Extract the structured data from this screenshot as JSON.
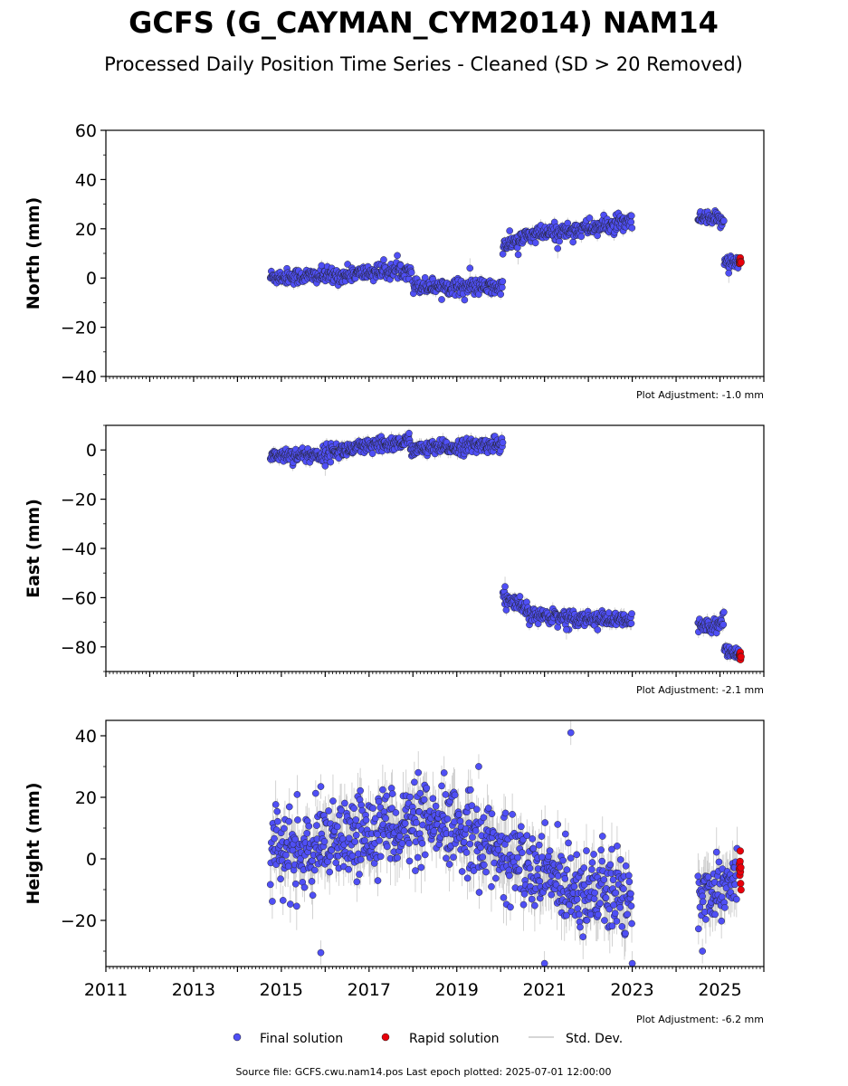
{
  "title": "GCFS (G_CAYMAN_CYM2014) NAM14",
  "subtitle": "Processed Daily Position Time Series - Cleaned (SD > 20 Removed)",
  "footer": "Source file: GCFS.cwu.nam14.pos  Last epoch plotted: 2025-07-01 12:00:00",
  "legend": {
    "final": "Final solution",
    "rapid": "Rapid solution",
    "std": "Std. Dev.",
    "placement": "bottom-center"
  },
  "colors": {
    "final": "#4f4ff5",
    "rapid": "#e8000b",
    "std": "#c8c8c8",
    "edge": "#202020"
  },
  "chart_data": [
    {
      "type": "scatter",
      "ylabel": "North (mm)",
      "ylim": [
        -40,
        60
      ],
      "yticks": [
        60,
        40,
        20,
        0,
        -20,
        -40
      ],
      "xlim": [
        2011,
        2026
      ],
      "grid": false,
      "adjustment": "Plot Adjustment: -1.0 mm",
      "segments": [
        {
          "start": 2014.75,
          "end": 2016.5,
          "y0": 0.5,
          "y1": 1.0,
          "noise": 1.6,
          "err": 1.5
        },
        {
          "start": 2016.5,
          "end": 2017.97,
          "y0": 1.5,
          "y1": 3.5,
          "noise": 1.6,
          "err": 1.5
        },
        {
          "start": 2018.0,
          "end": 2020.05,
          "y0": -3.0,
          "y1": -4.0,
          "noise": 1.6,
          "err": 1.6
        },
        {
          "start": 2020.05,
          "end": 2020.55,
          "y0": 13.0,
          "y1": 16.0,
          "noise": 1.6,
          "err": 1.6
        },
        {
          "start": 2020.55,
          "end": 2023.0,
          "y0": 17.0,
          "y1": 22.5,
          "noise": 1.7,
          "err": 1.7
        },
        {
          "start": 2024.5,
          "end": 2025.1,
          "y0": 24.0,
          "y1": 23.5,
          "noise": 1.5,
          "err": 1.6
        },
        {
          "start": 2025.1,
          "end": 2025.45,
          "y0": 7.5,
          "y1": 5.5,
          "noise": 1.5,
          "err": 1.6
        }
      ],
      "rapid": {
        "start": 2025.4,
        "end": 2025.5,
        "y": 6.5,
        "noise": 1.0,
        "count": 8
      },
      "outliers": [
        [
          2019.3,
          4.0
        ],
        [
          2020.4,
          9.5
        ],
        [
          2021.3,
          12.0
        ],
        [
          2025.2,
          2.0
        ]
      ]
    },
    {
      "type": "scatter",
      "ylabel": "East (mm)",
      "ylim": [
        -90,
        10
      ],
      "yticks": [
        0,
        -20,
        -40,
        -60,
        -80
      ],
      "xlim": [
        2011,
        2026
      ],
      "grid": false,
      "adjustment": "Plot Adjustment: -2.1 mm",
      "segments": [
        {
          "start": 2014.75,
          "end": 2016.0,
          "y0": -2.0,
          "y1": -2.0,
          "noise": 1.5,
          "err": 1.6
        },
        {
          "start": 2016.0,
          "end": 2017.97,
          "y0": -1.0,
          "y1": 3.5,
          "noise": 1.6,
          "err": 1.8
        },
        {
          "start": 2017.97,
          "end": 2020.05,
          "y0": 0.0,
          "y1": 2.5,
          "noise": 1.5,
          "err": 1.8
        },
        {
          "start": 2020.05,
          "end": 2020.6,
          "y0": -60.0,
          "y1": -65.0,
          "noise": 1.8,
          "err": 1.8
        },
        {
          "start": 2020.6,
          "end": 2023.0,
          "y0": -67.0,
          "y1": -69.5,
          "noise": 1.5,
          "err": 1.8
        },
        {
          "start": 2024.5,
          "end": 2025.1,
          "y0": -72.0,
          "y1": -70.0,
          "noise": 1.6,
          "err": 1.8
        },
        {
          "start": 2025.1,
          "end": 2025.45,
          "y0": -80.5,
          "y1": -83.0,
          "noise": 1.2,
          "err": 1.6
        }
      ],
      "rapid": {
        "start": 2025.4,
        "end": 2025.5,
        "y": -83.5,
        "noise": 0.8,
        "count": 8
      },
      "outliers": [
        [
          2016.0,
          -6.5
        ],
        [
          2020.1,
          -55.5
        ],
        [
          2021.5,
          -73.0
        ]
      ]
    },
    {
      "type": "scatter",
      "ylabel": "Height (mm)",
      "ylim": [
        -35,
        45
      ],
      "yticks": [
        40,
        20,
        0,
        -20
      ],
      "xticks": [
        2011,
        2013,
        2015,
        2017,
        2019,
        2021,
        2023,
        2025
      ],
      "xlim": [
        2011,
        2026
      ],
      "grid": false,
      "adjustment": "Plot Adjustment: -6.2 mm",
      "segments": [
        {
          "start": 2014.75,
          "end": 2016.0,
          "y0": 2.0,
          "y1": 2.0,
          "noise": 6.5,
          "err": 5.5
        },
        {
          "start": 2016.0,
          "end": 2017.5,
          "y0": 3.0,
          "y1": 12.0,
          "noise": 6.5,
          "err": 6.0
        },
        {
          "start": 2017.5,
          "end": 2019.5,
          "y0": 11.0,
          "y1": 9.0,
          "noise": 6.5,
          "err": 6.0
        },
        {
          "start": 2019.5,
          "end": 2021.0,
          "y0": 6.0,
          "y1": -6.0,
          "noise": 6.5,
          "err": 6.0
        },
        {
          "start": 2021.0,
          "end": 2023.0,
          "y0": -5.0,
          "y1": -14.0,
          "noise": 7.0,
          "err": 6.0
        },
        {
          "start": 2024.5,
          "end": 2025.4,
          "y0": -12.0,
          "y1": -4.0,
          "noise": 6.0,
          "err": 5.5
        }
      ],
      "rapid": {
        "start": 2025.4,
        "end": 2025.5,
        "y": -5.0,
        "noise": 3.0,
        "count": 10
      },
      "outliers": [
        [
          2021.6,
          41.0
        ],
        [
          2015.9,
          23.5
        ],
        [
          2015.9,
          -30.5
        ],
        [
          2019.5,
          30.0
        ],
        [
          2021.0,
          -34.0
        ],
        [
          2023.0,
          -34.0
        ],
        [
          2024.6,
          -30.0
        ]
      ]
    }
  ]
}
